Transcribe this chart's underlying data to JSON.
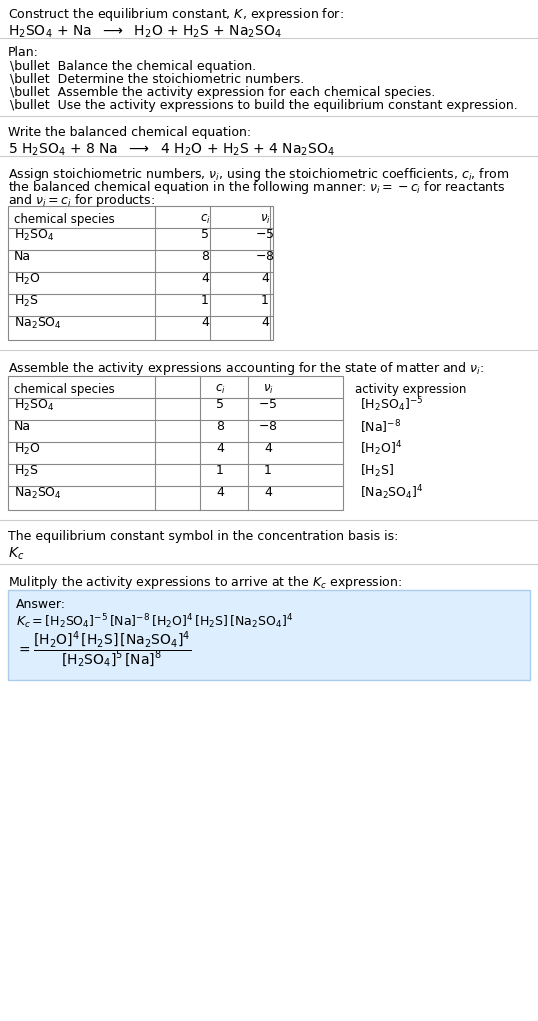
{
  "bg_color": "#ffffff",
  "title_line1": "Construct the equilibrium constant, $K$, expression for:",
  "title_line2": "$\\mathrm{H_2SO_4}$ + Na  $\\longrightarrow$  $\\mathrm{H_2O}$ + $\\mathrm{H_2S}$ + $\\mathrm{Na_2SO_4}$",
  "plan_header": "Plan:",
  "plan_items": [
    "\\bullet  Balance the chemical equation.",
    "\\bullet  Determine the stoichiometric numbers.",
    "\\bullet  Assemble the activity expression for each chemical species.",
    "\\bullet  Use the activity expressions to build the equilibrium constant expression."
  ],
  "balanced_header": "Write the balanced chemical equation:",
  "balanced_eq": "5 $\\mathrm{H_2SO_4}$ + 8 Na  $\\longrightarrow$  4 $\\mathrm{H_2O}$ + $\\mathrm{H_2S}$ + 4 $\\mathrm{Na_2SO_4}$",
  "stoich_header": "Assign stoichiometric numbers, $\\nu_i$, using the stoichiometric coefficients, $c_i$, from the balanced chemical equation in the following manner: $\\nu_i = -c_i$ for reactants and $\\nu_i = c_i$ for products:",
  "table1_cols": [
    "chemical species",
    "$c_i$",
    "$\\nu_i$"
  ],
  "table1_rows": [
    [
      "$\\mathrm{H_2SO_4}$",
      "5",
      "$-5$"
    ],
    [
      "Na",
      "8",
      "$-8$"
    ],
    [
      "$\\mathrm{H_2O}$",
      "4",
      "4"
    ],
    [
      "$\\mathrm{H_2S}$",
      "1",
      "1"
    ],
    [
      "$\\mathrm{Na_2SO_4}$",
      "4",
      "4"
    ]
  ],
  "activity_header": "Assemble the activity expressions accounting for the state of matter and $\\nu_i$:",
  "table2_cols": [
    "chemical species",
    "$c_i$",
    "$\\nu_i$",
    "activity expression"
  ],
  "table2_rows": [
    [
      "$\\mathrm{H_2SO_4}$",
      "5",
      "$-5$",
      "$[\\mathrm{H_2SO_4}]^{-5}$"
    ],
    [
      "Na",
      "8",
      "$-8$",
      "$[\\mathrm{Na}]^{-8}$"
    ],
    [
      "$\\mathrm{H_2O}$",
      "4",
      "4",
      "$[\\mathrm{H_2O}]^{4}$"
    ],
    [
      "$\\mathrm{H_2S}$",
      "1",
      "1",
      "$[\\mathrm{H_2S}]$"
    ],
    [
      "$\\mathrm{Na_2SO_4}$",
      "4",
      "4",
      "$[\\mathrm{Na_2SO_4}]^{4}$"
    ]
  ],
  "kc_symbol_header": "The equilibrium constant symbol in the concentration basis is:",
  "kc_symbol": "$K_c$",
  "multiply_header": "Mulitply the activity expressions to arrive at the $K_c$ expression:",
  "answer_label": "Answer:",
  "answer_line1": "$K_c = [\\mathrm{H_2SO_4}]^{-5}\\,[\\mathrm{Na}]^{-8}\\,[\\mathrm{H_2O}]^{4}\\,[\\mathrm{H_2S}]\\,[\\mathrm{Na_2SO_4}]^{4}$",
  "answer_equals": "$= \\dfrac{[\\mathrm{H_2O}]^{4}\\,[\\mathrm{H_2S}]\\,[\\mathrm{Na_2SO_4}]^{4}}{[\\mathrm{H_2SO_4}]^{5}\\,[\\mathrm{Na}]^{8}}$",
  "answer_box_color": "#ddeeff",
  "answer_box_border": "#aaccee",
  "table_border_color": "#888888",
  "text_color": "#000000",
  "font_size": 9,
  "fig_width": 5.38,
  "fig_height": 10.21
}
